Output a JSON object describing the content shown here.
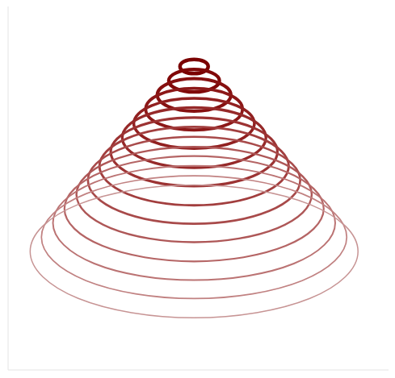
{
  "chart_data": {
    "type": "line",
    "tick_labels": false,
    "xlim": [
      -20,
      520
    ],
    "ylim": [
      20,
      480
    ],
    "series": [
      {
        "color": "#7a0000",
        "x": [
          266,
          260,
          244,
          228,
          222,
          228,
          244,
          260
        ],
        "values": [
          404,
          397,
          394,
          397,
          404,
          411,
          414,
          411
        ]
      },
      {
        "color": "#800808",
        "x": [
          284,
          272,
          244,
          216,
          204,
          216,
          244,
          272
        ],
        "values": [
          386,
          375,
          370,
          375,
          386,
          397,
          402,
          397
        ]
      },
      {
        "color": "#861010",
        "x": [
          302,
          285,
          244,
          203,
          186,
          203,
          244,
          285
        ],
        "values": [
          368,
          352,
          345,
          352,
          368,
          384,
          391,
          384
        ]
      },
      {
        "color": "#8c1818",
        "x": [
          320,
          298,
          244,
          190,
          168,
          190,
          244,
          298
        ],
        "values": [
          350,
          329,
          321,
          329,
          350,
          371,
          379,
          371
        ]
      },
      {
        "color": "#912020",
        "x": [
          339,
          311,
          244,
          177,
          149,
          177,
          244,
          311
        ],
        "values": [
          332,
          307,
          297,
          307,
          332,
          357,
          367,
          357
        ]
      },
      {
        "color": "#962929",
        "x": [
          357,
          324,
          244,
          164,
          131,
          164,
          244,
          324
        ],
        "values": [
          314,
          284,
          272,
          284,
          314,
          344,
          356,
          344
        ]
      },
      {
        "color": "#9c3333",
        "x": [
          375,
          337,
          244,
          151,
          113,
          151,
          244,
          337
        ],
        "values": [
          296,
          262,
          248,
          262,
          296,
          330,
          344,
          330
        ]
      },
      {
        "color": "#a23e3e",
        "x": [
          393,
          349,
          244,
          139,
          95,
          139,
          244,
          349
        ],
        "values": [
          278,
          239,
          223,
          239,
          278,
          317,
          333,
          317
        ]
      },
      {
        "color": "#a84a4a",
        "x": [
          411,
          362,
          244,
          126,
          77,
          126,
          244,
          362
        ],
        "values": [
          260,
          217,
          199,
          217,
          260,
          303,
          321,
          303
        ]
      },
      {
        "color": "#ae5757",
        "x": [
          429,
          375,
          244,
          113,
          59,
          113,
          244,
          375
        ],
        "values": [
          242,
          195,
          175,
          195,
          242,
          289,
          309,
          289
        ]
      },
      {
        "color": "#b56565",
        "x": [
          448,
          388,
          244,
          100,
          40,
          100,
          244,
          388
        ],
        "values": [
          224,
          172,
          150,
          172,
          224,
          276,
          298,
          276
        ]
      },
      {
        "color": "#bb7373",
        "x": [
          466,
          401,
          244,
          87,
          22,
          87,
          244,
          401
        ],
        "values": [
          206,
          149,
          126,
          149,
          206,
          263,
          286,
          263
        ]
      },
      {
        "color": "#c18282",
        "x": [
          484,
          414,
          244,
          74,
          4,
          74,
          244,
          414
        ],
        "values": [
          188,
          127,
          102,
          127,
          188,
          249,
          274,
          249
        ]
      },
      {
        "color": "#c79494",
        "x": [
          502,
          426,
          244,
          62,
          -14,
          62,
          244,
          426
        ],
        "values": [
          170,
          104,
          77,
          104,
          170,
          236,
          263,
          236
        ]
      }
    ]
  }
}
